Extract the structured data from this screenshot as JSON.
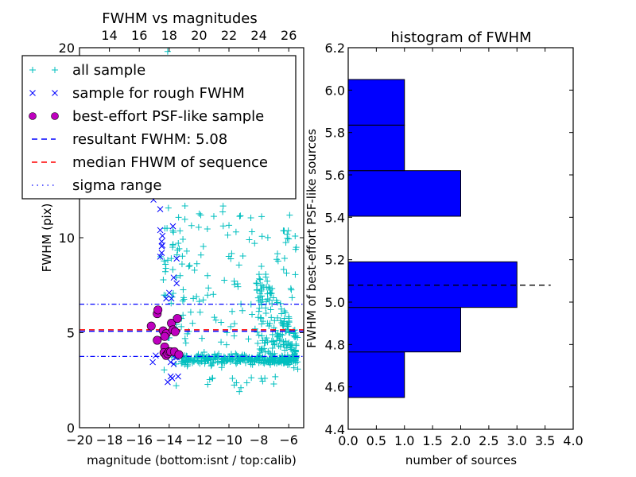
{
  "chart_data": [
    {
      "type": "scatter",
      "title": "FWHM vs magnitudes",
      "xlabel": "magnitude (bottom:isnt / top:calib)",
      "ylabel": "FWHM (pix)",
      "xlim": [
        -20,
        -5
      ],
      "ylim": [
        0,
        20
      ],
      "x_ticks": [
        "−20",
        "−18",
        "−16",
        "−14",
        "−12",
        "−10",
        "−8",
        "−6"
      ],
      "x_tick_values": [
        -20,
        -18,
        -16,
        -14,
        -12,
        -10,
        -8,
        -6
      ],
      "top_x_ticks": [
        "14",
        "16",
        "18",
        "20",
        "22",
        "24",
        "26"
      ],
      "top_x_tick_values_isnt": [
        -18,
        -16,
        -14,
        -12,
        -10,
        -8,
        -6
      ],
      "y_ticks": [
        "0",
        "5",
        "10",
        "20"
      ],
      "y_tick_values": [
        0,
        5,
        10,
        20
      ],
      "legend": {
        "placement": "top-left",
        "entries": [
          {
            "label": "all sample",
            "marker": "+",
            "color": "#00bfbf"
          },
          {
            "label": "sample for rough FWHM",
            "marker": "x",
            "color": "#0000ff"
          },
          {
            "label": "best-effort PSF-like sample",
            "marker": "o",
            "color": "#bf00bf"
          },
          {
            "label": "resultant FWHM: 5.08",
            "marker": "dashed",
            "color": "#0000ff"
          },
          {
            "label": "median FHWM of sequence",
            "marker": "dashed",
            "color": "#ff0000"
          },
          {
            "label": "sigma range",
            "marker": "dashdot",
            "color": "#0000ff"
          }
        ]
      },
      "lines": {
        "resultant_fwhm": 5.08,
        "median_fwhm": 5.15,
        "sigma_low": 3.75,
        "sigma_high": 6.5
      },
      "series": [
        {
          "name": "best-effort PSF-like sample",
          "color": "#bf00bf",
          "points": [
            [
              -15.2,
              5.35
            ],
            [
              -14.8,
              6.0
            ],
            [
              -14.75,
              6.2
            ],
            [
              -14.8,
              4.6
            ],
            [
              -14.4,
              5.1
            ],
            [
              -14.2,
              4.95
            ],
            [
              -14.3,
              4.8
            ],
            [
              -14.3,
              4.25
            ],
            [
              -14.35,
              3.95
            ],
            [
              -14.2,
              3.8
            ],
            [
              -14.1,
              3.9
            ],
            [
              -14.0,
              4.0
            ],
            [
              -13.9,
              4.0
            ],
            [
              -13.85,
              5.5
            ],
            [
              -13.75,
              5.15
            ],
            [
              -13.6,
              5.05
            ],
            [
              -13.65,
              4.0
            ],
            [
              -13.45,
              5.75
            ],
            [
              -13.35,
              3.85
            ]
          ]
        },
        {
          "name": "sample for rough FWHM",
          "color": "#0000ff",
          "points": [
            [
              -15.1,
              3.45
            ],
            [
              -14.9,
              3.8
            ],
            [
              -15.05,
              12.0
            ],
            [
              -14.6,
              11.5
            ],
            [
              -14.6,
              10.4
            ],
            [
              -14.45,
              10.1
            ],
            [
              -14.5,
              9.8
            ],
            [
              -14.45,
              9.6
            ],
            [
              -14.5,
              9.55
            ],
            [
              -14.5,
              9.2
            ],
            [
              -14.6,
              9.0
            ],
            [
              -14.2,
              6.8
            ],
            [
              -13.85,
              6.8
            ],
            [
              -13.75,
              10.6
            ],
            [
              -13.5,
              8.9
            ],
            [
              -13.7,
              7.9
            ],
            [
              -13.5,
              7.6
            ],
            [
              -14.0,
              7.1
            ],
            [
              -13.9,
              3.45
            ],
            [
              -13.7,
              3.35
            ],
            [
              -13.6,
              3.7
            ],
            [
              -13.5,
              3.7
            ],
            [
              -13.9,
              2.7
            ],
            [
              -13.8,
              2.6
            ],
            [
              -13.4,
              2.7
            ],
            [
              -14.1,
              2.4
            ]
          ]
        },
        {
          "name": "all sample",
          "color": "#00bfbf",
          "summary": "dense cluster ~3.5-4 pix across -13 to -5.5; broad scatter 2-12 pix; clump near -8 to -6 up to ~9 pix; one point at (-14.1, 19.8)"
        }
      ]
    },
    {
      "type": "bar",
      "orientation": "horizontal",
      "title": "histogram of FWHM",
      "xlabel": "number of sources",
      "ylabel": "FWHM of best-effort PSF-like sources",
      "xlim": [
        0.0,
        4.0
      ],
      "ylim": [
        4.4,
        6.2
      ],
      "x_ticks": [
        "0.0",
        "0.5",
        "1.0",
        "1.5",
        "2.0",
        "2.5",
        "3.0",
        "3.5",
        "4.0"
      ],
      "y_ticks": [
        "4.4",
        "4.6",
        "4.8",
        "5.0",
        "5.2",
        "5.4",
        "5.6",
        "5.8",
        "6.0",
        "6.2"
      ],
      "bin_edges": [
        4.55,
        4.765,
        4.975,
        5.19,
        5.405,
        5.62,
        5.835,
        6.05
      ],
      "values": [
        1,
        2,
        3,
        0,
        2,
        1,
        1
      ],
      "bar_color": "#0000ff",
      "reference_line": {
        "value": 5.08,
        "style": "dashed",
        "color": "#000000",
        "x_extent": 3.6
      }
    }
  ]
}
